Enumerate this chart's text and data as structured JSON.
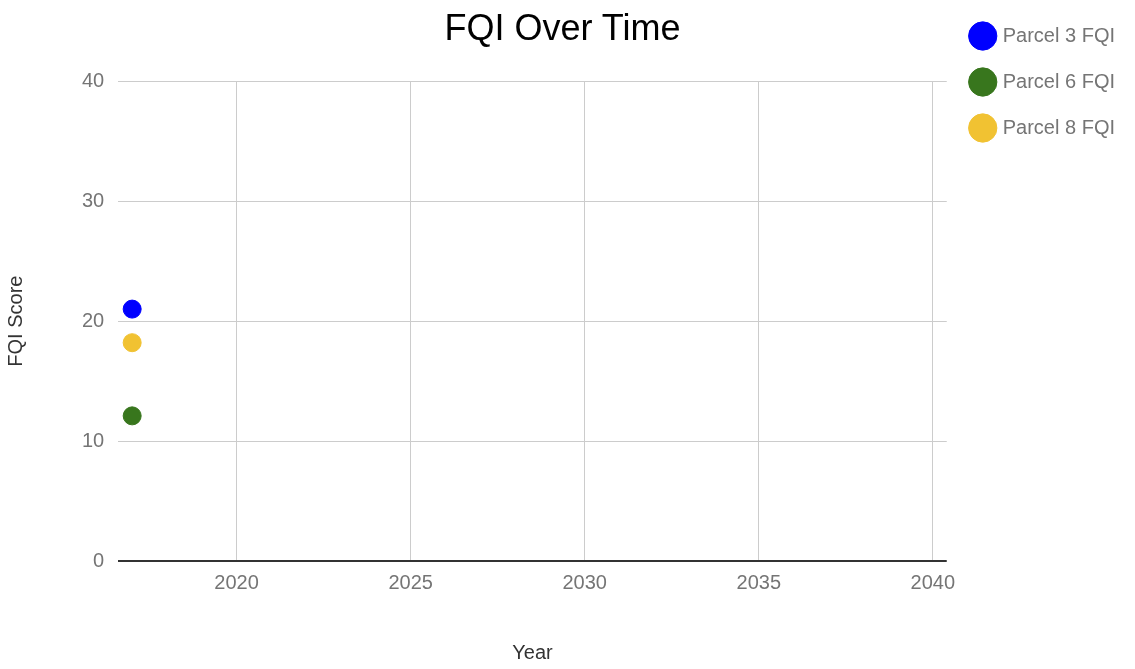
{
  "chart_data": {
    "type": "scatter",
    "title": "FQI Over Time",
    "xlabel": "Year",
    "ylabel": "FQI Score",
    "series": [
      {
        "name": "Parcel 3 FQI",
        "color": "#0000ff",
        "values": [
          21
        ]
      },
      {
        "name": "Parcel 6 FQI",
        "color": "#38761d",
        "values": [
          12.1
        ]
      },
      {
        "name": "Parcel 8 FQI",
        "color": "#f1c232",
        "values": [
          18.2
        ]
      }
    ],
    "x": [
      2017
    ],
    "xlim": [
      2016.6,
      2040.4
    ],
    "xticks": [
      2020,
      2025,
      2030,
      2035,
      2040
    ],
    "ylim": [
      0,
      40
    ],
    "yticks": [
      0,
      10,
      20,
      30,
      40
    ],
    "grid": true,
    "legend": "top right",
    "marker": "circle"
  }
}
